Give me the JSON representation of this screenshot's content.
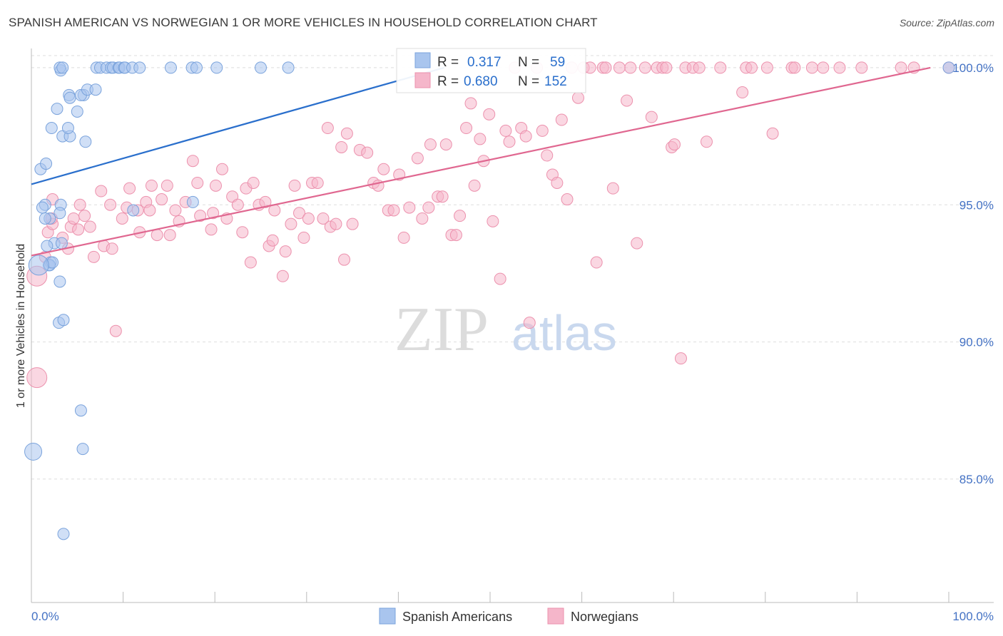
{
  "title": "SPANISH AMERICAN VS NORWEGIAN 1 OR MORE VEHICLES IN HOUSEHOLD CORRELATION CHART",
  "source": "Source: ZipAtlas.com",
  "watermark": {
    "zip": "ZIP",
    "atlas": "atlas"
  },
  "colors": {
    "blue_fill": "#a9c5ee",
    "blue_stroke": "#7aa3dc",
    "blue_line": "#2a6fcc",
    "pink_fill": "#f5b6ca",
    "pink_stroke": "#ec91ad",
    "pink_line": "#e06790",
    "tick_text": "#4472c4",
    "grid": "#dddddd"
  },
  "legend": {
    "rows": [
      {
        "r_label": "R = ",
        "r_value": "0.317",
        "n_label": "N = ",
        "n_value": "59"
      },
      {
        "r_label": "R = ",
        "r_value": "0.680",
        "n_label": "N = ",
        "n_value": "152"
      }
    ]
  },
  "chart_data": {
    "type": "scatter",
    "title": "SPANISH AMERICAN VS NORWEGIAN 1 OR MORE VEHICLES IN HOUSEHOLD CORRELATION CHART",
    "xlabel": "",
    "ylabel": "1 or more Vehicles in Household",
    "xlim": [
      0,
      100
    ],
    "ylim": [
      80.5,
      100.7
    ],
    "x_tick_labels": [
      "0.0%",
      "100.0%"
    ],
    "y_ticks": [
      85,
      90,
      95,
      100
    ],
    "y_tick_labels": [
      "85.0%",
      "90.0%",
      "95.0%",
      "100.0%"
    ],
    "legend_position": "bottom-center",
    "series": [
      {
        "name": "Spanish Americans",
        "r": 0.317,
        "n": 59,
        "trend": {
          "x": [
            0,
            45
          ],
          "y": [
            95.75,
            100.0
          ]
        },
        "points": [
          [
            0.2,
            86.0
          ],
          [
            1.5,
            95.0
          ],
          [
            3.2,
            95.0
          ],
          [
            2.0,
            94.5
          ],
          [
            1.2,
            94.9
          ],
          [
            1.0,
            96.3
          ],
          [
            1.6,
            96.5
          ],
          [
            2.2,
            97.8
          ],
          [
            3.4,
            97.5
          ],
          [
            4.2,
            97.5
          ],
          [
            5.9,
            97.3
          ],
          [
            2.8,
            98.5
          ],
          [
            4.0,
            97.8
          ],
          [
            5.0,
            98.4
          ],
          [
            4.1,
            99.0
          ],
          [
            4.2,
            98.9
          ],
          [
            5.7,
            99.0
          ],
          [
            5.4,
            99.0
          ],
          [
            6.1,
            99.2
          ],
          [
            7.0,
            99.2
          ],
          [
            3.2,
            99.9
          ],
          [
            3.1,
            100.0
          ],
          [
            3.4,
            100.0
          ],
          [
            7.1,
            100.0
          ],
          [
            7.5,
            100.0
          ],
          [
            8.2,
            100.0
          ],
          [
            8.7,
            100.0
          ],
          [
            8.9,
            100.0
          ],
          [
            9.5,
            100.0
          ],
          [
            9.6,
            100.0
          ],
          [
            10.1,
            100.0
          ],
          [
            10.2,
            100.0
          ],
          [
            11.0,
            100.0
          ],
          [
            11.8,
            100.0
          ],
          [
            15.2,
            100.0
          ],
          [
            17.5,
            100.0
          ],
          [
            18.0,
            100.0
          ],
          [
            20.2,
            100.0
          ],
          [
            25.0,
            100.0
          ],
          [
            28.0,
            100.0
          ],
          [
            1.5,
            94.5
          ],
          [
            2.5,
            93.6
          ],
          [
            3.1,
            94.7
          ],
          [
            3.3,
            93.6
          ],
          [
            1.7,
            93.5
          ],
          [
            1.9,
            92.8
          ],
          [
            2.1,
            92.9
          ],
          [
            2.0,
            92.8
          ],
          [
            2.3,
            92.9
          ],
          [
            0.8,
            92.8
          ],
          [
            3.1,
            92.2
          ],
          [
            3.0,
            90.7
          ],
          [
            3.5,
            90.8
          ],
          [
            5.4,
            87.5
          ],
          [
            5.6,
            86.1
          ],
          [
            3.5,
            83.0
          ],
          [
            17.6,
            95.1
          ],
          [
            11.1,
            94.8
          ],
          [
            100.0,
            100.0
          ]
        ]
      },
      {
        "name": "Norwegians",
        "r": 0.68,
        "n": 152,
        "trend": {
          "x": [
            0,
            98
          ],
          "y": [
            93.15,
            100.0
          ]
        },
        "points": [
          [
            0.6,
            88.7
          ],
          [
            0.6,
            92.4
          ],
          [
            1.5,
            93.1
          ],
          [
            1.8,
            94.0
          ],
          [
            2.3,
            94.3
          ],
          [
            2.2,
            94.5
          ],
          [
            2.3,
            95.2
          ],
          [
            3.4,
            93.8
          ],
          [
            4.0,
            93.4
          ],
          [
            4.3,
            94.2
          ],
          [
            4.6,
            94.5
          ],
          [
            5.1,
            94.1
          ],
          [
            5.3,
            95.0
          ],
          [
            5.8,
            94.6
          ],
          [
            6.4,
            94.2
          ],
          [
            6.8,
            93.1
          ],
          [
            7.6,
            95.5
          ],
          [
            7.9,
            93.5
          ],
          [
            8.6,
            95.0
          ],
          [
            8.8,
            93.4
          ],
          [
            9.2,
            90.4
          ],
          [
            9.9,
            94.5
          ],
          [
            10.4,
            94.9
          ],
          [
            10.7,
            95.6
          ],
          [
            11.6,
            94.8
          ],
          [
            11.8,
            94.0
          ],
          [
            12.5,
            95.1
          ],
          [
            12.9,
            94.8
          ],
          [
            13.1,
            95.7
          ],
          [
            13.7,
            93.9
          ],
          [
            14.2,
            95.2
          ],
          [
            14.8,
            95.7
          ],
          [
            15.1,
            93.9
          ],
          [
            15.7,
            94.8
          ],
          [
            16.1,
            94.4
          ],
          [
            16.8,
            95.1
          ],
          [
            17.6,
            96.6
          ],
          [
            18.1,
            95.8
          ],
          [
            18.4,
            94.6
          ],
          [
            19.6,
            94.1
          ],
          [
            19.8,
            94.7
          ],
          [
            20.1,
            95.7
          ],
          [
            20.8,
            96.3
          ],
          [
            21.3,
            94.5
          ],
          [
            21.9,
            95.3
          ],
          [
            22.5,
            95.0
          ],
          [
            23.0,
            94.0
          ],
          [
            23.4,
            95.6
          ],
          [
            23.9,
            92.9
          ],
          [
            24.2,
            95.8
          ],
          [
            24.8,
            95.0
          ],
          [
            25.5,
            95.1
          ],
          [
            25.9,
            93.5
          ],
          [
            26.3,
            93.7
          ],
          [
            26.5,
            94.8
          ],
          [
            27.4,
            92.4
          ],
          [
            27.7,
            93.3
          ],
          [
            28.3,
            94.3
          ],
          [
            28.7,
            95.7
          ],
          [
            29.2,
            94.7
          ],
          [
            29.7,
            93.8
          ],
          [
            30.2,
            94.5
          ],
          [
            30.6,
            95.8
          ],
          [
            31.2,
            95.8
          ],
          [
            31.8,
            94.5
          ],
          [
            32.3,
            97.8
          ],
          [
            32.6,
            94.2
          ],
          [
            33.2,
            94.3
          ],
          [
            33.8,
            97.1
          ],
          [
            34.1,
            93.0
          ],
          [
            34.4,
            97.6
          ],
          [
            35.0,
            94.3
          ],
          [
            35.8,
            97.0
          ],
          [
            36.6,
            96.9
          ],
          [
            37.3,
            95.8
          ],
          [
            37.8,
            95.7
          ],
          [
            38.4,
            96.3
          ],
          [
            38.9,
            94.8
          ],
          [
            39.5,
            94.8
          ],
          [
            40.1,
            96.1
          ],
          [
            40.6,
            93.8
          ],
          [
            41.2,
            94.9
          ],
          [
            42.1,
            96.7
          ],
          [
            42.6,
            94.5
          ],
          [
            43.3,
            94.9
          ],
          [
            43.5,
            97.2
          ],
          [
            44.3,
            95.3
          ],
          [
            44.8,
            95.3
          ],
          [
            45.2,
            97.2
          ],
          [
            45.8,
            93.9
          ],
          [
            46.3,
            93.9
          ],
          [
            46.7,
            94.6
          ],
          [
            47.4,
            97.8
          ],
          [
            47.9,
            98.7
          ],
          [
            48.3,
            95.7
          ],
          [
            48.9,
            97.4
          ],
          [
            49.3,
            96.6
          ],
          [
            49.9,
            98.3
          ],
          [
            50.3,
            94.4
          ],
          [
            51.1,
            92.3
          ],
          [
            51.7,
            97.7
          ],
          [
            52.1,
            97.3
          ],
          [
            52.7,
            100.0
          ],
          [
            53.4,
            97.8
          ],
          [
            53.9,
            97.5
          ],
          [
            54.3,
            90.7
          ],
          [
            55.1,
            100.0
          ],
          [
            55.7,
            97.7
          ],
          [
            56.2,
            96.8
          ],
          [
            56.8,
            96.1
          ],
          [
            57.3,
            95.8
          ],
          [
            57.8,
            98.1
          ],
          [
            58.4,
            95.2
          ],
          [
            58.9,
            100.0
          ],
          [
            59.6,
            98.9
          ],
          [
            60.2,
            100.0
          ],
          [
            60.9,
            100.0
          ],
          [
            61.6,
            92.9
          ],
          [
            62.3,
            100.0
          ],
          [
            62.6,
            100.0
          ],
          [
            63.4,
            95.6
          ],
          [
            64.1,
            100.0
          ],
          [
            64.9,
            98.8
          ],
          [
            65.3,
            100.0
          ],
          [
            66.0,
            93.6
          ],
          [
            66.9,
            100.0
          ],
          [
            67.6,
            98.2
          ],
          [
            68.2,
            100.0
          ],
          [
            68.8,
            100.0
          ],
          [
            69.2,
            100.0
          ],
          [
            69.8,
            97.1
          ],
          [
            70.1,
            97.2
          ],
          [
            70.8,
            89.4
          ],
          [
            71.3,
            100.0
          ],
          [
            72.1,
            100.0
          ],
          [
            72.8,
            100.0
          ],
          [
            73.6,
            97.3
          ],
          [
            75.1,
            100.0
          ],
          [
            77.5,
            99.1
          ],
          [
            77.9,
            100.0
          ],
          [
            78.5,
            100.0
          ],
          [
            80.2,
            100.0
          ],
          [
            80.8,
            97.6
          ],
          [
            82.9,
            100.0
          ],
          [
            83.2,
            100.0
          ],
          [
            85.1,
            100.0
          ],
          [
            86.3,
            100.0
          ],
          [
            88.1,
            100.0
          ],
          [
            90.5,
            100.0
          ],
          [
            94.8,
            100.0
          ],
          [
            96.2,
            100.0
          ],
          [
            100.0,
            100.0
          ]
        ]
      }
    ]
  }
}
